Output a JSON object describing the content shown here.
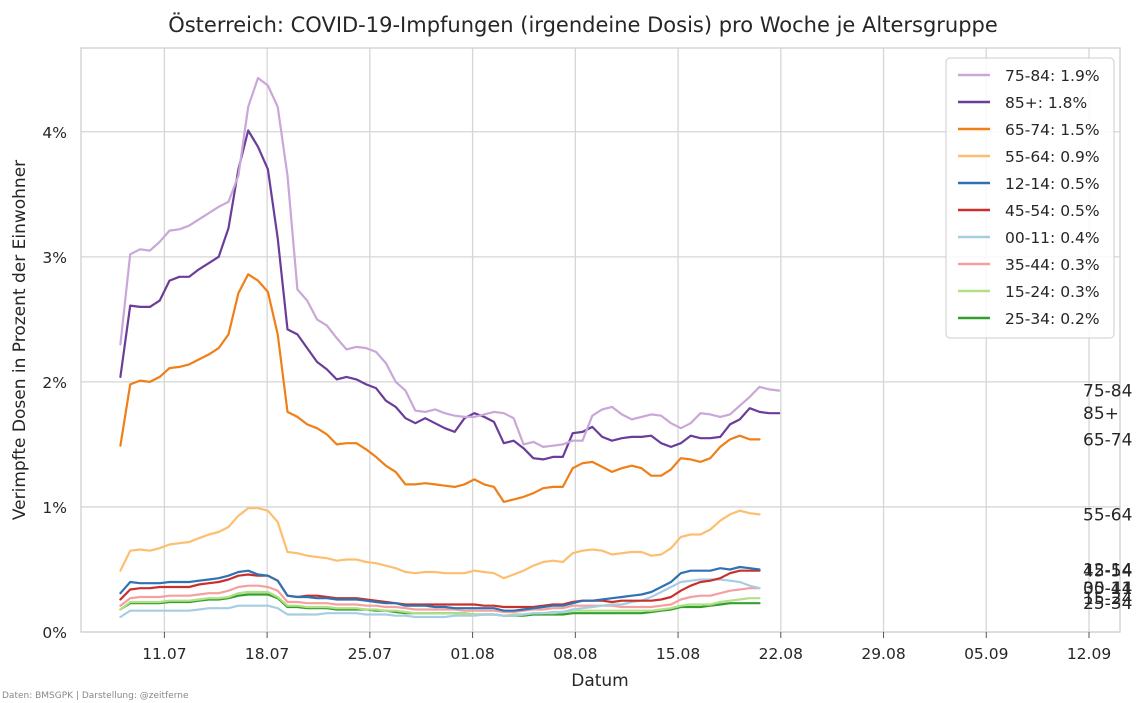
{
  "chart_data": {
    "type": "line",
    "title": "Österreich: COVID-19-Impfungen (irgendeine Dosis) pro Woche je Altersgruppe",
    "xlabel": "Datum",
    "ylabel": "Verimpfte Dosen in Prozent der Einwohner",
    "credit": "Daten: BMSGPK | Darstellung: @zeitferne",
    "xlim": [
      "2021-07-06",
      "2021-09-12"
    ],
    "ylim": [
      0,
      4.67
    ],
    "x_ticks": [
      {
        "date": "2021-07-11",
        "label": "11.07"
      },
      {
        "date": "2021-07-18",
        "label": "18.07"
      },
      {
        "date": "2021-07-25",
        "label": "25.07"
      },
      {
        "date": "2021-08-01",
        "label": "01.08"
      },
      {
        "date": "2021-08-08",
        "label": "08.08"
      },
      {
        "date": "2021-08-15",
        "label": "15.08"
      },
      {
        "date": "2021-08-22",
        "label": "22.08"
      },
      {
        "date": "2021-08-29",
        "label": "29.08"
      },
      {
        "date": "2021-09-05",
        "label": "05.09"
      },
      {
        "date": "2021-09-12",
        "label": "12.09"
      }
    ],
    "y_ticks": [
      {
        "value": 0,
        "label": "0%"
      },
      {
        "value": 1,
        "label": "1%"
      },
      {
        "value": 2,
        "label": "2%"
      },
      {
        "value": 3,
        "label": "3%"
      },
      {
        "value": 4,
        "label": "4%"
      }
    ],
    "grid": true,
    "legend_position": "top-right",
    "x_start": "2021-07-08",
    "x_step_days": 0.67,
    "series": [
      {
        "name": "75-84",
        "legend": "75-84: 1.9%",
        "end_label": "75-84",
        "color": "#c9a7d8",
        "values": [
          2.3,
          3.02,
          3.06,
          3.05,
          3.12,
          3.21,
          3.22,
          3.25,
          3.3,
          3.35,
          3.4,
          3.44,
          3.65,
          4.2,
          4.43,
          4.37,
          4.2,
          3.65,
          2.74,
          2.65,
          2.5,
          2.45,
          2.35,
          2.26,
          2.28,
          2.27,
          2.24,
          2.15,
          2.0,
          1.93,
          1.77,
          1.76,
          1.78,
          1.75,
          1.73,
          1.72,
          1.72,
          1.74,
          1.76,
          1.75,
          1.71,
          1.5,
          1.52,
          1.48,
          1.49,
          1.5,
          1.53,
          1.53,
          1.73,
          1.78,
          1.8,
          1.74,
          1.7,
          1.72,
          1.74,
          1.73,
          1.67,
          1.63,
          1.67,
          1.75,
          1.74,
          1.72,
          1.74,
          1.81,
          1.88,
          1.96,
          1.94,
          1.93
        ]
      },
      {
        "name": "85+",
        "legend": "85+: 1.8%",
        "end_label": "85+",
        "color": "#6a3d9a",
        "values": [
          2.04,
          2.61,
          2.6,
          2.6,
          2.65,
          2.81,
          2.84,
          2.84,
          2.9,
          2.95,
          3.0,
          3.23,
          3.7,
          4.01,
          3.88,
          3.7,
          3.15,
          2.42,
          2.38,
          2.27,
          2.16,
          2.1,
          2.02,
          2.04,
          2.02,
          1.98,
          1.95,
          1.85,
          1.8,
          1.71,
          1.67,
          1.71,
          1.67,
          1.63,
          1.6,
          1.71,
          1.75,
          1.72,
          1.68,
          1.51,
          1.53,
          1.47,
          1.39,
          1.38,
          1.4,
          1.4,
          1.59,
          1.6,
          1.64,
          1.56,
          1.53,
          1.55,
          1.56,
          1.56,
          1.57,
          1.51,
          1.48,
          1.51,
          1.57,
          1.55,
          1.55,
          1.56,
          1.66,
          1.7,
          1.79,
          1.76,
          1.75,
          1.75
        ]
      },
      {
        "name": "65-74",
        "legend": "65-74: 1.5%",
        "end_label": "65-74",
        "color": "#f07f17",
        "values": [
          1.49,
          1.98,
          2.01,
          2.0,
          2.04,
          2.11,
          2.12,
          2.14,
          2.18,
          2.22,
          2.27,
          2.38,
          2.71,
          2.86,
          2.81,
          2.72,
          2.38,
          1.76,
          1.72,
          1.66,
          1.63,
          1.58,
          1.5,
          1.51,
          1.51,
          1.46,
          1.4,
          1.33,
          1.28,
          1.18,
          1.18,
          1.19,
          1.18,
          1.17,
          1.16,
          1.18,
          1.22,
          1.18,
          1.16,
          1.04,
          1.06,
          1.08,
          1.11,
          1.15,
          1.16,
          1.16,
          1.31,
          1.35,
          1.36,
          1.32,
          1.28,
          1.31,
          1.33,
          1.31,
          1.25,
          1.25,
          1.3,
          1.39,
          1.38,
          1.36,
          1.39,
          1.48,
          1.54,
          1.57,
          1.54,
          1.54
        ]
      },
      {
        "name": "55-64",
        "legend": "55-64: 0.9%",
        "end_label": "55-64",
        "color": "#fdbf6f",
        "values": [
          0.49,
          0.65,
          0.66,
          0.65,
          0.67,
          0.7,
          0.71,
          0.72,
          0.75,
          0.78,
          0.8,
          0.84,
          0.93,
          0.99,
          0.99,
          0.97,
          0.88,
          0.64,
          0.63,
          0.61,
          0.6,
          0.59,
          0.57,
          0.58,
          0.58,
          0.56,
          0.55,
          0.53,
          0.51,
          0.48,
          0.47,
          0.48,
          0.48,
          0.47,
          0.47,
          0.47,
          0.49,
          0.48,
          0.47,
          0.43,
          0.46,
          0.49,
          0.53,
          0.56,
          0.57,
          0.56,
          0.63,
          0.65,
          0.66,
          0.65,
          0.62,
          0.63,
          0.64,
          0.64,
          0.61,
          0.62,
          0.67,
          0.76,
          0.78,
          0.78,
          0.82,
          0.89,
          0.94,
          0.97,
          0.95,
          0.94
        ]
      },
      {
        "name": "12-14",
        "legend": "12-14: 0.5%",
        "end_label": "12-14",
        "color": "#2f72b3",
        "values": [
          0.31,
          0.4,
          0.39,
          0.39,
          0.39,
          0.4,
          0.4,
          0.4,
          0.41,
          0.42,
          0.43,
          0.45,
          0.48,
          0.49,
          0.46,
          0.45,
          0.41,
          0.29,
          0.28,
          0.28,
          0.27,
          0.27,
          0.26,
          0.26,
          0.26,
          0.25,
          0.24,
          0.23,
          0.23,
          0.21,
          0.21,
          0.21,
          0.2,
          0.2,
          0.19,
          0.19,
          0.19,
          0.19,
          0.19,
          0.17,
          0.17,
          0.18,
          0.19,
          0.2,
          0.21,
          0.21,
          0.23,
          0.25,
          0.25,
          0.26,
          0.27,
          0.28,
          0.29,
          0.3,
          0.32,
          0.36,
          0.4,
          0.47,
          0.49,
          0.49,
          0.49,
          0.51,
          0.5,
          0.52,
          0.51,
          0.5
        ]
      },
      {
        "name": "45-54",
        "legend": "45-54: 0.5%",
        "end_label": "45-54",
        "color": "#c9302c",
        "values": [
          0.26,
          0.34,
          0.35,
          0.35,
          0.36,
          0.36,
          0.36,
          0.36,
          0.38,
          0.39,
          0.4,
          0.42,
          0.45,
          0.46,
          0.45,
          0.45,
          0.41,
          0.29,
          0.28,
          0.29,
          0.29,
          0.28,
          0.27,
          0.27,
          0.27,
          0.26,
          0.25,
          0.24,
          0.23,
          0.22,
          0.22,
          0.22,
          0.22,
          0.22,
          0.22,
          0.22,
          0.22,
          0.21,
          0.21,
          0.2,
          0.2,
          0.2,
          0.2,
          0.21,
          0.22,
          0.22,
          0.24,
          0.25,
          0.25,
          0.25,
          0.24,
          0.25,
          0.25,
          0.25,
          0.25,
          0.26,
          0.28,
          0.33,
          0.37,
          0.4,
          0.41,
          0.43,
          0.47,
          0.49,
          0.49,
          0.49
        ]
      },
      {
        "name": "00-11",
        "legend": "00-11: 0.4%",
        "end_label": "00-11",
        "color": "#a6cee3",
        "values": [
          0.12,
          0.17,
          0.17,
          0.17,
          0.17,
          0.17,
          0.17,
          0.17,
          0.18,
          0.19,
          0.19,
          0.19,
          0.21,
          0.21,
          0.21,
          0.21,
          0.19,
          0.14,
          0.14,
          0.14,
          0.14,
          0.15,
          0.15,
          0.15,
          0.15,
          0.14,
          0.14,
          0.14,
          0.13,
          0.13,
          0.12,
          0.12,
          0.12,
          0.12,
          0.13,
          0.13,
          0.13,
          0.14,
          0.14,
          0.13,
          0.13,
          0.14,
          0.15,
          0.15,
          0.16,
          0.16,
          0.18,
          0.19,
          0.2,
          0.21,
          0.22,
          0.22,
          0.24,
          0.25,
          0.28,
          0.32,
          0.36,
          0.4,
          0.41,
          0.42,
          0.42,
          0.42,
          0.41,
          0.4,
          0.37,
          0.35
        ]
      },
      {
        "name": "35-44",
        "legend": "35-44: 0.3%",
        "end_label": "35-44",
        "color": "#f4a0a0",
        "values": [
          0.21,
          0.27,
          0.28,
          0.28,
          0.28,
          0.29,
          0.29,
          0.29,
          0.3,
          0.31,
          0.31,
          0.33,
          0.36,
          0.37,
          0.37,
          0.36,
          0.33,
          0.24,
          0.24,
          0.23,
          0.23,
          0.23,
          0.22,
          0.22,
          0.22,
          0.21,
          0.21,
          0.2,
          0.2,
          0.19,
          0.18,
          0.18,
          0.18,
          0.18,
          0.18,
          0.17,
          0.17,
          0.17,
          0.17,
          0.16,
          0.16,
          0.17,
          0.18,
          0.18,
          0.19,
          0.19,
          0.21,
          0.21,
          0.21,
          0.21,
          0.21,
          0.2,
          0.2,
          0.2,
          0.2,
          0.21,
          0.22,
          0.26,
          0.28,
          0.29,
          0.29,
          0.31,
          0.33,
          0.34,
          0.35,
          0.35
        ]
      },
      {
        "name": "15-24",
        "legend": "15-24: 0.3%",
        "end_label": "15-24",
        "color": "#b2df8a",
        "values": [
          0.18,
          0.24,
          0.24,
          0.24,
          0.24,
          0.25,
          0.25,
          0.25,
          0.26,
          0.27,
          0.27,
          0.28,
          0.31,
          0.32,
          0.32,
          0.32,
          0.28,
          0.21,
          0.21,
          0.2,
          0.2,
          0.2,
          0.19,
          0.19,
          0.19,
          0.18,
          0.18,
          0.17,
          0.17,
          0.16,
          0.15,
          0.15,
          0.15,
          0.15,
          0.15,
          0.15,
          0.14,
          0.14,
          0.14,
          0.13,
          0.14,
          0.14,
          0.15,
          0.15,
          0.15,
          0.16,
          0.17,
          0.17,
          0.17,
          0.17,
          0.17,
          0.17,
          0.17,
          0.17,
          0.17,
          0.18,
          0.19,
          0.21,
          0.22,
          0.22,
          0.22,
          0.24,
          0.25,
          0.26,
          0.27,
          0.27
        ]
      },
      {
        "name": "25-34",
        "legend": "25-34: 0.2%",
        "end_label": "25-34",
        "color": "#33a02c",
        "values": [
          0.18,
          0.23,
          0.23,
          0.23,
          0.23,
          0.24,
          0.24,
          0.24,
          0.25,
          0.26,
          0.26,
          0.27,
          0.29,
          0.3,
          0.3,
          0.3,
          0.27,
          0.2,
          0.2,
          0.19,
          0.19,
          0.19,
          0.18,
          0.18,
          0.18,
          0.18,
          0.17,
          0.17,
          0.16,
          0.15,
          0.15,
          0.15,
          0.15,
          0.15,
          0.15,
          0.15,
          0.14,
          0.14,
          0.14,
          0.13,
          0.13,
          0.13,
          0.14,
          0.14,
          0.14,
          0.14,
          0.15,
          0.15,
          0.15,
          0.15,
          0.15,
          0.15,
          0.15,
          0.15,
          0.16,
          0.17,
          0.18,
          0.2,
          0.2,
          0.2,
          0.21,
          0.22,
          0.23,
          0.23,
          0.23,
          0.23
        ]
      }
    ]
  }
}
